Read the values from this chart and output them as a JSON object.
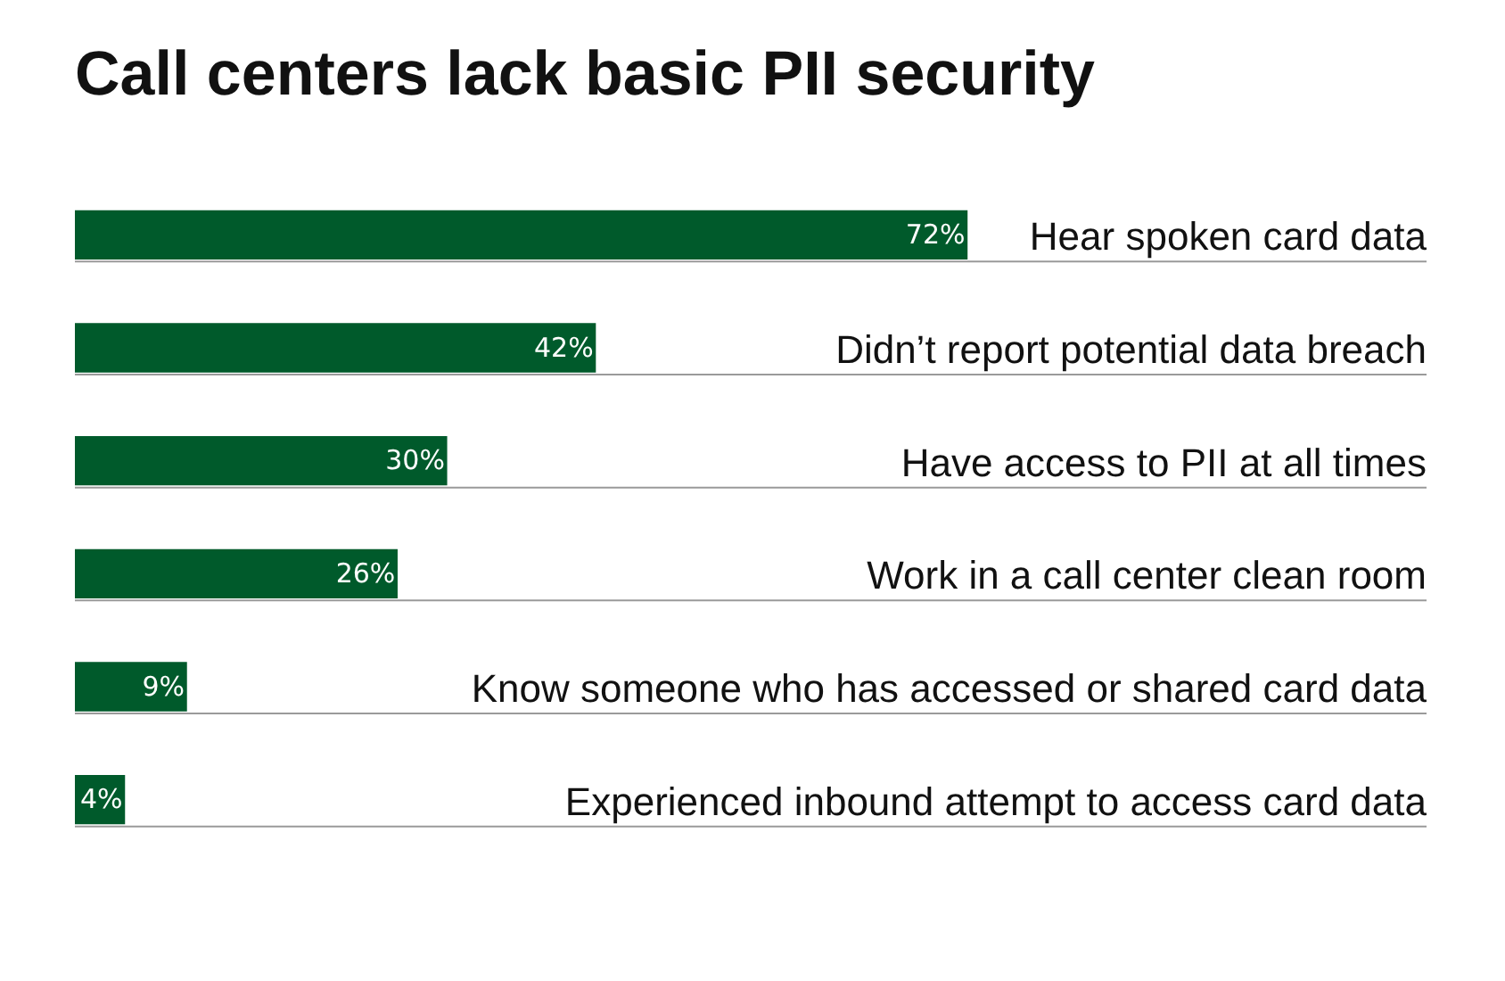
{
  "chart_data": {
    "type": "bar",
    "orientation": "horizontal",
    "title": "Call centers lack basic PII security",
    "categories": [
      "Hear spoken card data",
      "Didn’t report potential data breach",
      "Have access to PII at all times",
      "Work in a call center clean room",
      "Know someone who has accessed or shared card data",
      "Experienced inbound attempt to access card data"
    ],
    "values": [
      72,
      42,
      30,
      26,
      9,
      4
    ],
    "value_labels": [
      "72%",
      "42%",
      "30%",
      "26%",
      "9%",
      "4%"
    ],
    "color": "#005a2b"
  }
}
